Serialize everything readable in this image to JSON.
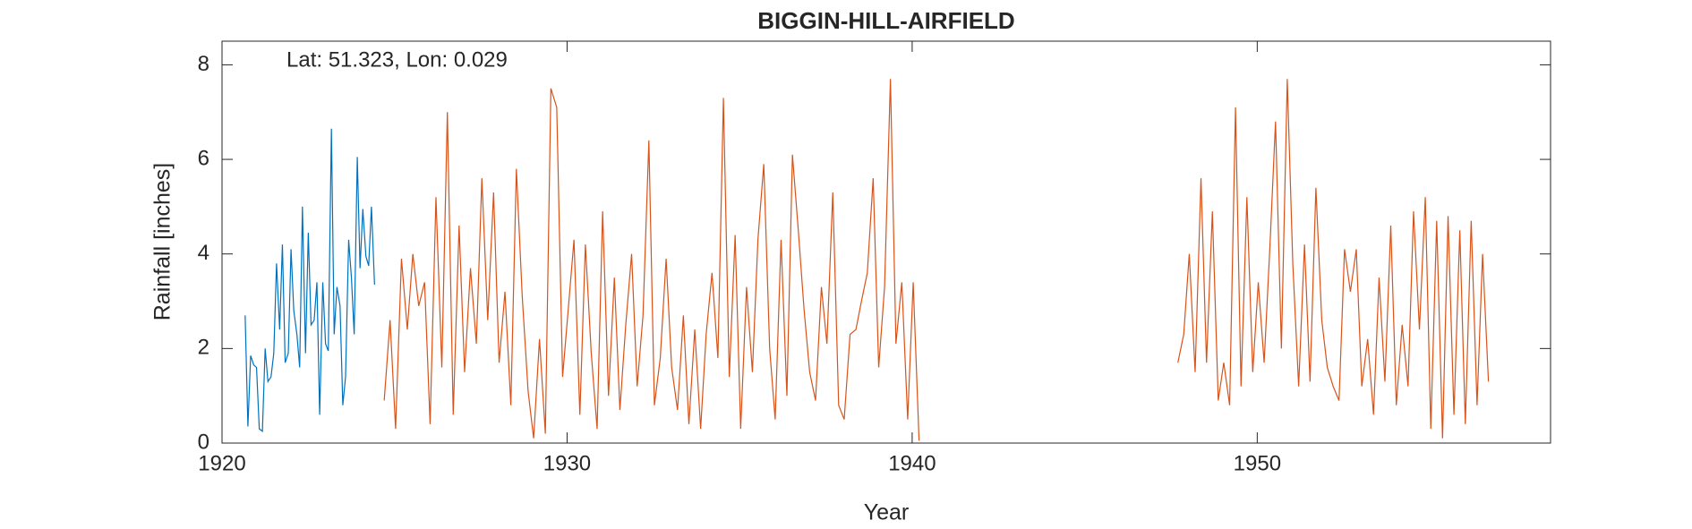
{
  "chart_data": {
    "type": "line",
    "title": "BIGGIN-HILL-AIRFIELD",
    "annotation": "Lat: 51.323, Lon: 0.029",
    "x_label": "Year",
    "y_label": "Rainfall [inches]",
    "xlim": [
      1920,
      1958.5
    ],
    "ylim": [
      0,
      8.5
    ],
    "xticks": [
      1920,
      1930,
      1940,
      1950
    ],
    "yticks": [
      0,
      2,
      4,
      6,
      8
    ],
    "grid": false,
    "series": [
      {
        "color": "#0072bd",
        "x": [
          1920.67,
          1920.75,
          1920.83,
          1920.92,
          1921.0,
          1921.08,
          1921.17,
          1921.25,
          1921.33,
          1921.42,
          1921.5,
          1921.58,
          1921.67,
          1921.75,
          1921.83,
          1921.92,
          1922.0,
          1922.08,
          1922.17,
          1922.25,
          1922.33,
          1922.42,
          1922.5,
          1922.58,
          1922.67,
          1922.75,
          1922.83,
          1922.92,
          1923.0,
          1923.08,
          1923.17,
          1923.25,
          1923.33,
          1923.42,
          1923.5,
          1923.58,
          1923.67,
          1923.75,
          1923.83,
          1923.92,
          1924.0,
          1924.08,
          1924.17,
          1924.25,
          1924.33,
          1924.42
        ],
        "values": [
          2.7,
          0.35,
          1.85,
          1.65,
          1.6,
          0.3,
          0.25,
          2.0,
          1.3,
          1.4,
          1.9,
          3.8,
          2.4,
          4.2,
          1.7,
          1.9,
          4.1,
          2.8,
          2.3,
          1.6,
          5.0,
          1.9,
          4.45,
          2.5,
          2.6,
          3.4,
          0.6,
          3.4,
          2.1,
          1.95,
          6.65,
          2.3,
          3.3,
          2.9,
          0.8,
          1.4,
          4.3,
          3.5,
          2.3,
          6.05,
          3.7,
          4.95,
          3.95,
          3.75,
          5.0,
          3.35
        ]
      },
      {
        "color": "#d95319",
        "x": [
          1924.7,
          1924.87,
          1925.03,
          1925.2,
          1925.37,
          1925.53,
          1925.7,
          1925.87,
          1926.03,
          1926.2,
          1926.37,
          1926.53,
          1926.7,
          1926.87,
          1927.03,
          1927.2,
          1927.37,
          1927.53,
          1927.7,
          1927.87,
          1928.03,
          1928.2,
          1928.37,
          1928.53,
          1928.7,
          1928.87,
          1929.03,
          1929.2,
          1929.37,
          1929.53,
          1929.7,
          1929.87,
          1930.03,
          1930.2,
          1930.37,
          1930.53,
          1930.7,
          1930.87,
          1931.03,
          1931.2,
          1931.37,
          1931.53,
          1931.7,
          1931.87,
          1932.03,
          1932.2,
          1932.37,
          1932.53,
          1932.7,
          1932.87,
          1933.03,
          1933.2,
          1933.37,
          1933.53,
          1933.7,
          1933.87,
          1934.03,
          1934.2,
          1934.37,
          1934.53,
          1934.7,
          1934.87,
          1935.03,
          1935.2,
          1935.37,
          1935.53,
          1935.7,
          1935.87,
          1936.03,
          1936.2,
          1936.37,
          1936.53,
          1936.7,
          1936.87,
          1937.03,
          1937.2,
          1937.37,
          1937.53,
          1937.7,
          1937.87,
          1938.03,
          1938.2,
          1938.37,
          1938.53,
          1938.7,
          1938.87,
          1939.03,
          1939.2,
          1939.37,
          1939.53,
          1939.7,
          1939.87,
          1940.03,
          1940.2,
          1944,
          1947.7,
          1947.87,
          1948.03,
          1948.2,
          1948.37,
          1948.53,
          1948.7,
          1948.87,
          1949.03,
          1949.2,
          1949.37,
          1949.53,
          1949.7,
          1949.87,
          1950.03,
          1950.2,
          1950.37,
          1950.53,
          1950.7,
          1950.87,
          1951.03,
          1951.2,
          1951.37,
          1951.53,
          1951.7,
          1951.87,
          1952.03,
          1952.2,
          1952.37,
          1952.53,
          1952.7,
          1952.87,
          1953.03,
          1953.2,
          1953.37,
          1953.53,
          1953.7,
          1953.87,
          1954.03,
          1954.2,
          1954.37,
          1954.53,
          1954.7,
          1954.87,
          1955.03,
          1955.2,
          1955.37,
          1955.53,
          1955.7,
          1955.87,
          1956.03,
          1956.2,
          1956.37,
          1956.53,
          1956.7
        ],
        "values": [
          0.9,
          2.6,
          0.3,
          3.9,
          2.4,
          4.0,
          2.9,
          3.4,
          0.4,
          5.2,
          1.6,
          7.0,
          0.6,
          4.6,
          1.5,
          3.7,
          2.1,
          5.6,
          2.6,
          5.3,
          1.7,
          3.2,
          0.8,
          5.8,
          3.1,
          1.1,
          0.1,
          2.2,
          0.2,
          7.5,
          7.1,
          1.4,
          2.8,
          4.3,
          0.6,
          4.2,
          1.9,
          0.3,
          4.9,
          1.0,
          3.5,
          0.7,
          2.5,
          4.0,
          1.2,
          2.7,
          6.4,
          0.8,
          1.8,
          3.9,
          1.6,
          0.7,
          2.7,
          0.4,
          2.4,
          0.3,
          2.3,
          3.6,
          1.8,
          7.3,
          1.4,
          4.4,
          0.3,
          3.3,
          1.5,
          4.3,
          5.9,
          2.0,
          0.5,
          4.3,
          1.0,
          6.1,
          4.5,
          2.8,
          1.5,
          0.9,
          3.3,
          2.1,
          5.3,
          0.8,
          0.5,
          2.3,
          2.4,
          3.0,
          3.6,
          5.6,
          1.6,
          3.3,
          7.7,
          2.1,
          3.4,
          0.5,
          3.4,
          0.05,
          null,
          1.7,
          2.3,
          4.0,
          1.5,
          5.6,
          1.7,
          4.9,
          0.9,
          1.7,
          0.8,
          7.1,
          1.2,
          5.2,
          1.5,
          3.4,
          1.7,
          4.2,
          6.8,
          2.0,
          7.7,
          3.8,
          1.2,
          4.2,
          1.3,
          5.4,
          2.6,
          1.6,
          1.2,
          0.9,
          4.1,
          3.2,
          4.1,
          1.2,
          2.2,
          0.6,
          3.5,
          1.3,
          4.6,
          0.8,
          2.5,
          1.2,
          4.9,
          2.4,
          5.2,
          0.3,
          4.7,
          0.1,
          4.8,
          0.6,
          4.5,
          0.4,
          4.7,
          0.8,
          4.0,
          1.3
        ]
      }
    ]
  }
}
